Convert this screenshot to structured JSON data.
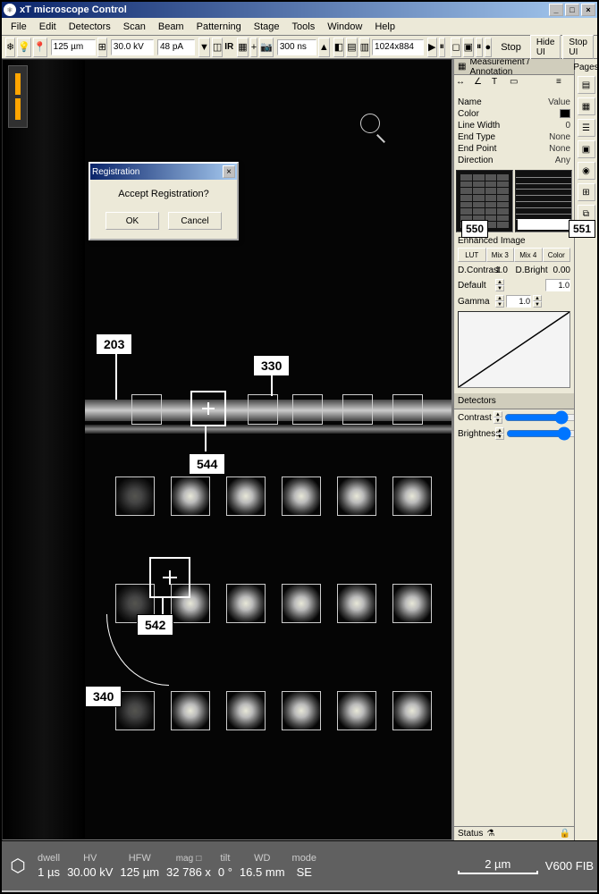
{
  "window": {
    "title": "xT microscope Control",
    "hide_btn": "Hide UI",
    "stop_btn": "Stop UI"
  },
  "menu": [
    "File",
    "Edit",
    "Detectors",
    "Scan",
    "Beam",
    "Patterning",
    "Stage",
    "Tools",
    "Window",
    "Help"
  ],
  "toolbar": {
    "hv": "30.0 kV",
    "current": "48 pA",
    "dwell_input": "300 ns",
    "res": "1024x884",
    "ir": "IR",
    "stop": "Stop",
    "pages": "Pages"
  },
  "dialog": {
    "title": "Registration",
    "msg": "Accept Registration?",
    "ok": "OK",
    "cancel": "Cancel"
  },
  "status": {
    "dwell_lbl": "dwell",
    "dwell": "1 µs",
    "hv_lbl": "HV",
    "hv": "30.00 kV",
    "hfw_lbl": "HFW",
    "hfw": "125 µm",
    "mag_lbl": "mag",
    "mag": "32 786 x",
    "mag_sq": "□",
    "tilt_lbl": "tilt",
    "tilt": "0 °",
    "wd_lbl": "WD",
    "wd": "16.5 mm",
    "mode_lbl": "mode",
    "mode": "SE",
    "scale": "2 µm",
    "det": "V600 FIB"
  },
  "callouts": {
    "c203": "203",
    "c330": "330",
    "c340": "340",
    "c542": "542",
    "c544": "544",
    "c550": "550",
    "c551": "551"
  },
  "side": {
    "panel_title": "Measurement / Annotation",
    "props": {
      "name_k": "Name",
      "name_v": "",
      "color_k": "Color",
      "color_v": "",
      "lw_k": "Line Width",
      "lw_v": "0",
      "et_k": "End Type",
      "et_v": "None",
      "ep_k": "End Point",
      "ep_v": "None",
      "dir_k": "Direction",
      "dir_v": "Any",
      "val_k": "Value",
      "val_v": ""
    },
    "enhanced": "Enhanced Image",
    "lut_tabs": [
      "LUT",
      "Mix 3",
      "Mix 4",
      "Color"
    ],
    "dcontrast_lbl": "D.Contrast",
    "dcontrast": "1.0",
    "dbright_lbl": "D.Bright",
    "dbright": "0.00",
    "default": "Default",
    "gamma_lbl": "Gamma",
    "gamma": "1.0",
    "detectors": "Detectors",
    "contrast_lbl": "Contrast",
    "contrast": "63.6",
    "brightness_lbl": "Brightness",
    "brightness": "51.2",
    "status": "Status"
  }
}
